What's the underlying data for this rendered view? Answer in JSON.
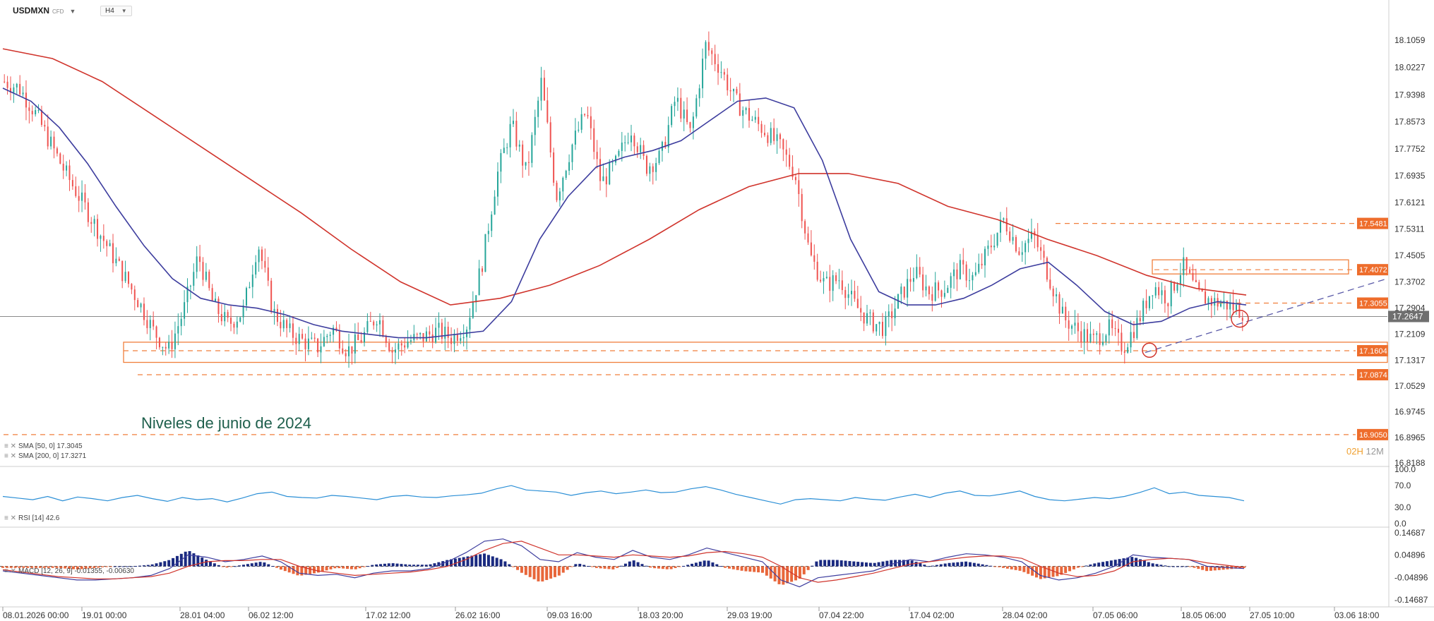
{
  "header": {
    "symbol": "USDMXN",
    "instrument_type": "CFD",
    "timeframe": "H4"
  },
  "indicator_legends": {
    "sma50": "SMA [50, 0] 17.3045",
    "sma200": "SMA [200, 0] 17.3271",
    "rsi": "RSI [14] 42.6",
    "macd": "MACD [12, 26, 9] -0.01355, -0.00630"
  },
  "annotation": "Niveles de junio de 2024",
  "candle_timer": {
    "hours": "02H",
    "minutes": "12M"
  },
  "colors": {
    "up_candle": "#26a69a",
    "down_candle": "#ef5350",
    "sma50": "#3d3d9e",
    "sma200": "#d0342c",
    "level": "#f07f3c",
    "level_label_bg": "#ee6d2c",
    "rsi_line": "#2b8fd6",
    "macd_hist_pos": "#1a2a80",
    "macd_hist_neg": "#e8663a",
    "price_tag_bg": "#6f6f6f"
  },
  "chart_data": [
    {
      "type": "candlestick",
      "title": "USDMXN",
      "timeframe": "H4",
      "ylim": [
        16.78,
        18.16
      ],
      "yticks": [
        "18.1059",
        "18.0227",
        "17.9398",
        "17.8573",
        "17.7752",
        "17.6935",
        "17.6121",
        "17.5311",
        "17.4505",
        "17.3702",
        "17.2904",
        "17.2109",
        "17.1317",
        "17.0529",
        "16.9745",
        "16.8965",
        "16.8188"
      ],
      "xticks": [
        "08.01.2026 00:00",
        "19.01 00:00",
        "28.01 04:00",
        "06.02 12:00",
        "17.02 12:00",
        "26.02 16:00",
        "09.03 16:00",
        "18.03 20:00",
        "29.03 19:00",
        "07.04 22:00",
        "17.04 02:00",
        "28.04 02:00",
        "07.05 06:00",
        "18.05 06:00",
        "27.05 10:00",
        "03.06 18:00"
      ],
      "current_price": "17.2647",
      "price_path_closes": [
        17.98,
        17.96,
        17.89,
        17.8,
        17.71,
        17.63,
        17.55,
        17.47,
        17.39,
        17.31,
        17.22,
        17.16,
        17.28,
        17.45,
        17.3,
        17.24,
        17.28,
        17.49,
        17.28,
        17.22,
        17.19,
        17.17,
        17.23,
        17.16,
        17.2,
        17.27,
        17.16,
        17.19,
        17.2,
        17.22,
        17.2,
        17.24,
        17.42,
        17.69,
        17.85,
        17.7,
        17.98,
        17.63,
        17.78,
        17.89,
        17.67,
        17.73,
        17.84,
        17.72,
        17.75,
        17.93,
        17.82,
        18.09,
        18.02,
        17.92,
        17.87,
        17.83,
        17.78,
        17.7,
        17.45,
        17.36,
        17.38,
        17.3,
        17.25,
        17.23,
        17.32,
        17.4,
        17.34,
        17.35,
        17.41,
        17.38,
        17.47,
        17.56,
        17.47,
        17.51,
        17.39,
        17.26,
        17.22,
        17.19,
        17.23,
        17.17,
        17.25,
        17.36,
        17.32,
        17.42,
        17.33,
        17.31,
        17.3,
        17.28
      ],
      "sma50_path": [
        17.96,
        17.92,
        17.84,
        17.73,
        17.6,
        17.48,
        17.38,
        17.32,
        17.3,
        17.29,
        17.27,
        17.24,
        17.22,
        17.21,
        17.2,
        17.2,
        17.21,
        17.22,
        17.31,
        17.5,
        17.63,
        17.72,
        17.75,
        17.77,
        17.8,
        17.86,
        17.92,
        17.93,
        17.9,
        17.74,
        17.5,
        17.34,
        17.3,
        17.3,
        17.32,
        17.36,
        17.41,
        17.43,
        17.36,
        17.28,
        17.24,
        17.25,
        17.29,
        17.31,
        17.3
      ],
      "sma200_path": [
        18.08,
        18.05,
        17.98,
        17.88,
        17.78,
        17.68,
        17.58,
        17.47,
        17.37,
        17.3,
        17.32,
        17.36,
        17.42,
        17.5,
        17.59,
        17.66,
        17.7,
        17.7,
        17.67,
        17.6,
        17.56,
        17.5,
        17.45,
        17.39,
        17.35,
        17.33
      ],
      "levels": [
        {
          "value": "17.5481",
          "style": "dashed"
        },
        {
          "value": "17.4072",
          "style": "box"
        },
        {
          "value": "17.3055",
          "style": "dashed"
        },
        {
          "value": "17.1604",
          "style": "box"
        },
        {
          "value": "17.0874",
          "style": "dashed"
        },
        {
          "value": "16.9050",
          "style": "dashed"
        }
      ],
      "support_zone": [
        17.14,
        17.18
      ],
      "resistance_zone": [
        17.4,
        17.42
      ],
      "trendline": {
        "from": {
          "x": "07.05 06:00",
          "y": 17.16
        },
        "to": {
          "x": "27.05 10:00",
          "y": 17.37
        },
        "style": "dashed"
      }
    },
    {
      "type": "line",
      "title": "RSI [14]",
      "ylim": [
        0,
        100
      ],
      "yticks": [
        "100.0",
        "70.0",
        "30.0",
        "0.0"
      ],
      "series": [
        {
          "name": "RSI [14]",
          "values": [
            50,
            47,
            44,
            50,
            42,
            49,
            46,
            42,
            48,
            52,
            46,
            41,
            48,
            44,
            46,
            40,
            47,
            55,
            58,
            50,
            48,
            47,
            52,
            50,
            47,
            44,
            50,
            52,
            49,
            48,
            51,
            53,
            56,
            64,
            70,
            62,
            60,
            58,
            52,
            57,
            60,
            55,
            58,
            62,
            57,
            58,
            64,
            68,
            62,
            54,
            48,
            42,
            36,
            44,
            46,
            44,
            42,
            48,
            45,
            43,
            49,
            54,
            48,
            56,
            60,
            52,
            51,
            55,
            60,
            50,
            44,
            42,
            45,
            48,
            46,
            50,
            57,
            66,
            55,
            58,
            52,
            50,
            48,
            42
          ]
        }
      ]
    },
    {
      "type": "bar",
      "title": "MACD [12, 26, 9]",
      "ylim": [
        -0.14687,
        0.14687
      ],
      "yticks": [
        "0.14687",
        "0.04896",
        "-0.04896",
        "-0.14687"
      ],
      "series": [
        {
          "name": "MACD",
          "values": [
            -0.02,
            -0.03,
            -0.04,
            -0.05,
            -0.06,
            -0.06,
            -0.055,
            -0.05,
            -0.04,
            -0.01,
            0.05,
            0.04,
            0.02,
            0.03,
            0.045,
            0.02,
            -0.03,
            -0.04,
            -0.035,
            -0.05,
            -0.03,
            -0.02,
            -0.02,
            -0.01,
            0.02,
            0.06,
            0.11,
            0.12,
            0.09,
            0.03,
            0.02,
            0.06,
            0.04,
            0.03,
            0.07,
            0.04,
            0.03,
            0.05,
            0.08,
            0.06,
            0.04,
            0.02,
            -0.06,
            -0.09,
            -0.05,
            -0.04,
            -0.03,
            -0.02,
            0.01,
            0.03,
            0.02,
            0.04,
            0.055,
            0.05,
            0.04,
            0.02,
            -0.04,
            -0.06,
            -0.05,
            -0.03,
            0.0,
            0.05,
            0.04,
            0.035,
            0.03,
            0.0,
            -0.005,
            -0.01
          ]
        },
        {
          "name": "Signal",
          "values": [
            -0.015,
            -0.025,
            -0.035,
            -0.045,
            -0.05,
            -0.055,
            -0.055,
            -0.05,
            -0.045,
            -0.03,
            0.0,
            0.02,
            0.025,
            0.025,
            0.03,
            0.03,
            0.0,
            -0.02,
            -0.03,
            -0.04,
            -0.035,
            -0.03,
            -0.025,
            -0.015,
            0.0,
            0.03,
            0.07,
            0.1,
            0.11,
            0.08,
            0.05,
            0.05,
            0.045,
            0.04,
            0.05,
            0.045,
            0.04,
            0.045,
            0.06,
            0.065,
            0.055,
            0.04,
            0.0,
            -0.05,
            -0.07,
            -0.06,
            -0.045,
            -0.03,
            -0.01,
            0.01,
            0.02,
            0.03,
            0.04,
            0.045,
            0.045,
            0.035,
            0.0,
            -0.03,
            -0.045,
            -0.04,
            -0.02,
            0.02,
            0.03,
            0.035,
            0.03,
            0.015,
            0.005,
            -0.005
          ]
        }
      ]
    }
  ]
}
